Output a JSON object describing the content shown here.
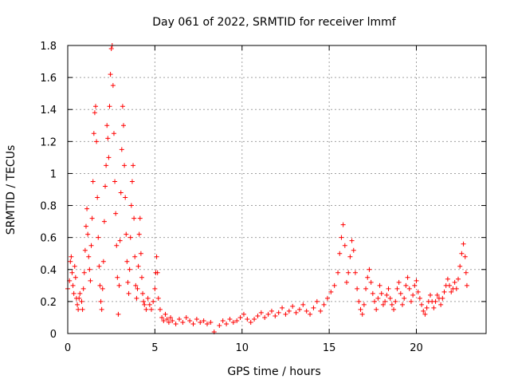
{
  "chart_data": {
    "type": "scatter",
    "title": "Day 061 of 2022, SRMTID for receiver lmmf",
    "xlabel": "GPS time / hours",
    "ylabel": "SRMTID / TECUs",
    "xlim": [
      0,
      24
    ],
    "ylim": [
      0,
      1.8
    ],
    "x_ticks": [
      0,
      5,
      10,
      15,
      20
    ],
    "x_tick_labels": [
      "0",
      "5",
      "10",
      "15",
      "20"
    ],
    "y_ticks": [
      0,
      0.2,
      0.4,
      0.6,
      0.8,
      1.0,
      1.2,
      1.4,
      1.6,
      1.8
    ],
    "y_tick_labels": [
      "0",
      "0.2",
      "0.4",
      "0.6",
      "0.8",
      "1",
      "1.2",
      "1.4",
      "1.6",
      "1.8"
    ],
    "grid": true,
    "marker": "+",
    "color": "#ff0000",
    "series": [
      {
        "name": "SRMTID",
        "points": [
          [
            0.0,
            0.28
          ],
          [
            0.1,
            0.33
          ],
          [
            0.15,
            0.45
          ],
          [
            0.2,
            0.48
          ],
          [
            0.25,
            0.38
          ],
          [
            0.3,
            0.3
          ],
          [
            0.35,
            0.25
          ],
          [
            0.4,
            0.42
          ],
          [
            0.45,
            0.35
          ],
          [
            0.5,
            0.22
          ],
          [
            0.55,
            0.18
          ],
          [
            0.6,
            0.15
          ],
          [
            0.65,
            0.22
          ],
          [
            0.7,
            0.25
          ],
          [
            0.8,
            0.2
          ],
          [
            0.85,
            0.15
          ],
          [
            0.9,
            0.28
          ],
          [
            0.95,
            0.38
          ],
          [
            1.0,
            0.52
          ],
          [
            1.05,
            0.67
          ],
          [
            1.1,
            0.78
          ],
          [
            1.15,
            0.62
          ],
          [
            1.2,
            0.48
          ],
          [
            1.25,
            0.4
          ],
          [
            1.3,
            0.33
          ],
          [
            1.35,
            0.55
          ],
          [
            1.4,
            0.72
          ],
          [
            1.45,
            0.95
          ],
          [
            1.5,
            1.25
          ],
          [
            1.55,
            1.38
          ],
          [
            1.6,
            1.42
          ],
          [
            1.65,
            1.2
          ],
          [
            1.7,
            0.85
          ],
          [
            1.75,
            0.6
          ],
          [
            1.8,
            0.42
          ],
          [
            1.85,
            0.3
          ],
          [
            1.9,
            0.2
          ],
          [
            1.95,
            0.15
          ],
          [
            2.0,
            0.28
          ],
          [
            2.05,
            0.45
          ],
          [
            2.1,
            0.7
          ],
          [
            2.15,
            0.92
          ],
          [
            2.2,
            1.05
          ],
          [
            2.25,
            1.3
          ],
          [
            2.3,
            1.22
          ],
          [
            2.35,
            1.1
          ],
          [
            2.4,
            1.42
          ],
          [
            2.45,
            1.62
          ],
          [
            2.5,
            1.78
          ],
          [
            2.55,
            1.8
          ],
          [
            2.6,
            1.55
          ],
          [
            2.65,
            1.25
          ],
          [
            2.7,
            0.95
          ],
          [
            2.75,
            0.75
          ],
          [
            2.8,
            0.55
          ],
          [
            2.85,
            0.35
          ],
          [
            2.9,
            0.12
          ],
          [
            2.95,
            0.3
          ],
          [
            3.0,
            0.58
          ],
          [
            3.05,
            0.88
          ],
          [
            3.1,
            1.15
          ],
          [
            3.15,
            1.42
          ],
          [
            3.2,
            1.3
          ],
          [
            3.25,
            1.05
          ],
          [
            3.3,
            0.85
          ],
          [
            3.35,
            0.62
          ],
          [
            3.4,
            0.45
          ],
          [
            3.45,
            0.32
          ],
          [
            3.5,
            0.25
          ],
          [
            3.55,
            0.4
          ],
          [
            3.6,
            0.6
          ],
          [
            3.65,
            0.8
          ],
          [
            3.7,
            0.95
          ],
          [
            3.75,
            1.05
          ],
          [
            3.8,
            0.72
          ],
          [
            3.85,
            0.48
          ],
          [
            3.9,
            0.3
          ],
          [
            3.95,
            0.22
          ],
          [
            4.0,
            0.28
          ],
          [
            4.05,
            0.42
          ],
          [
            4.1,
            0.62
          ],
          [
            4.15,
            0.72
          ],
          [
            4.2,
            0.5
          ],
          [
            4.25,
            0.35
          ],
          [
            4.3,
            0.25
          ],
          [
            4.35,
            0.2
          ],
          [
            4.4,
            0.18
          ],
          [
            4.5,
            0.15
          ],
          [
            4.6,
            0.22
          ],
          [
            4.7,
            0.18
          ],
          [
            4.8,
            0.15
          ],
          [
            4.9,
            0.2
          ],
          [
            5.0,
            0.28
          ],
          [
            5.05,
            0.38
          ],
          [
            5.1,
            0.48
          ],
          [
            5.15,
            0.38
          ],
          [
            5.2,
            0.22
          ],
          [
            5.3,
            0.15
          ],
          [
            5.4,
            0.1
          ],
          [
            5.5,
            0.08
          ],
          [
            5.6,
            0.12
          ],
          [
            5.7,
            0.09
          ],
          [
            5.8,
            0.07
          ],
          [
            5.9,
            0.1
          ],
          [
            6.0,
            0.08
          ],
          [
            6.2,
            0.06
          ],
          [
            6.4,
            0.09
          ],
          [
            6.6,
            0.07
          ],
          [
            6.8,
            0.1
          ],
          [
            7.0,
            0.08
          ],
          [
            7.2,
            0.06
          ],
          [
            7.4,
            0.09
          ],
          [
            7.6,
            0.07
          ],
          [
            7.8,
            0.08
          ],
          [
            8.0,
            0.06
          ],
          [
            8.2,
            0.07
          ],
          [
            8.4,
            0.01
          ],
          [
            8.7,
            0.05
          ],
          [
            8.9,
            0.08
          ],
          [
            9.1,
            0.06
          ],
          [
            9.3,
            0.09
          ],
          [
            9.5,
            0.07
          ],
          [
            9.7,
            0.08
          ],
          [
            9.9,
            0.1
          ],
          [
            10.1,
            0.12
          ],
          [
            10.3,
            0.09
          ],
          [
            10.5,
            0.07
          ],
          [
            10.7,
            0.09
          ],
          [
            10.9,
            0.11
          ],
          [
            11.1,
            0.13
          ],
          [
            11.3,
            0.1
          ],
          [
            11.5,
            0.12
          ],
          [
            11.7,
            0.14
          ],
          [
            11.9,
            0.11
          ],
          [
            12.1,
            0.13
          ],
          [
            12.3,
            0.16
          ],
          [
            12.5,
            0.12
          ],
          [
            12.7,
            0.14
          ],
          [
            12.9,
            0.17
          ],
          [
            13.1,
            0.13
          ],
          [
            13.3,
            0.15
          ],
          [
            13.5,
            0.18
          ],
          [
            13.7,
            0.14
          ],
          [
            13.9,
            0.12
          ],
          [
            14.1,
            0.16
          ],
          [
            14.3,
            0.2
          ],
          [
            14.5,
            0.14
          ],
          [
            14.7,
            0.18
          ],
          [
            14.9,
            0.22
          ],
          [
            15.1,
            0.26
          ],
          [
            15.3,
            0.3
          ],
          [
            15.5,
            0.38
          ],
          [
            15.6,
            0.5
          ],
          [
            15.7,
            0.6
          ],
          [
            15.8,
            0.68
          ],
          [
            15.9,
            0.55
          ],
          [
            16.0,
            0.32
          ],
          [
            16.1,
            0.38
          ],
          [
            16.2,
            0.48
          ],
          [
            16.3,
            0.58
          ],
          [
            16.4,
            0.52
          ],
          [
            16.5,
            0.38
          ],
          [
            16.6,
            0.28
          ],
          [
            16.7,
            0.2
          ],
          [
            16.8,
            0.15
          ],
          [
            16.9,
            0.12
          ],
          [
            17.0,
            0.18
          ],
          [
            17.1,
            0.28
          ],
          [
            17.2,
            0.35
          ],
          [
            17.3,
            0.4
          ],
          [
            17.4,
            0.32
          ],
          [
            17.5,
            0.25
          ],
          [
            17.6,
            0.2
          ],
          [
            17.7,
            0.15
          ],
          [
            17.8,
            0.22
          ],
          [
            17.9,
            0.3
          ],
          [
            18.0,
            0.25
          ],
          [
            18.1,
            0.18
          ],
          [
            18.2,
            0.2
          ],
          [
            18.3,
            0.24
          ],
          [
            18.4,
            0.28
          ],
          [
            18.5,
            0.22
          ],
          [
            18.6,
            0.18
          ],
          [
            18.7,
            0.15
          ],
          [
            18.8,
            0.2
          ],
          [
            18.9,
            0.28
          ],
          [
            19.0,
            0.32
          ],
          [
            19.1,
            0.25
          ],
          [
            19.2,
            0.18
          ],
          [
            19.3,
            0.22
          ],
          [
            19.4,
            0.3
          ],
          [
            19.5,
            0.35
          ],
          [
            19.6,
            0.28
          ],
          [
            19.7,
            0.2
          ],
          [
            19.8,
            0.24
          ],
          [
            19.9,
            0.3
          ],
          [
            20.0,
            0.33
          ],
          [
            20.1,
            0.26
          ],
          [
            20.2,
            0.22
          ],
          [
            20.3,
            0.18
          ],
          [
            20.4,
            0.14
          ],
          [
            20.5,
            0.12
          ],
          [
            20.6,
            0.16
          ],
          [
            20.7,
            0.2
          ],
          [
            20.8,
            0.24
          ],
          [
            20.9,
            0.2
          ],
          [
            21.0,
            0.16
          ],
          [
            21.1,
            0.2
          ],
          [
            21.2,
            0.24
          ],
          [
            21.3,
            0.22
          ],
          [
            21.4,
            0.18
          ],
          [
            21.5,
            0.22
          ],
          [
            21.6,
            0.26
          ],
          [
            21.7,
            0.3
          ],
          [
            21.8,
            0.34
          ],
          [
            21.9,
            0.3
          ],
          [
            22.0,
            0.26
          ],
          [
            22.1,
            0.28
          ],
          [
            22.2,
            0.32
          ],
          [
            22.3,
            0.28
          ],
          [
            22.4,
            0.34
          ],
          [
            22.5,
            0.42
          ],
          [
            22.6,
            0.5
          ],
          [
            22.7,
            0.56
          ],
          [
            22.8,
            0.48
          ],
          [
            22.85,
            0.38
          ],
          [
            22.9,
            0.3
          ]
        ]
      }
    ]
  }
}
